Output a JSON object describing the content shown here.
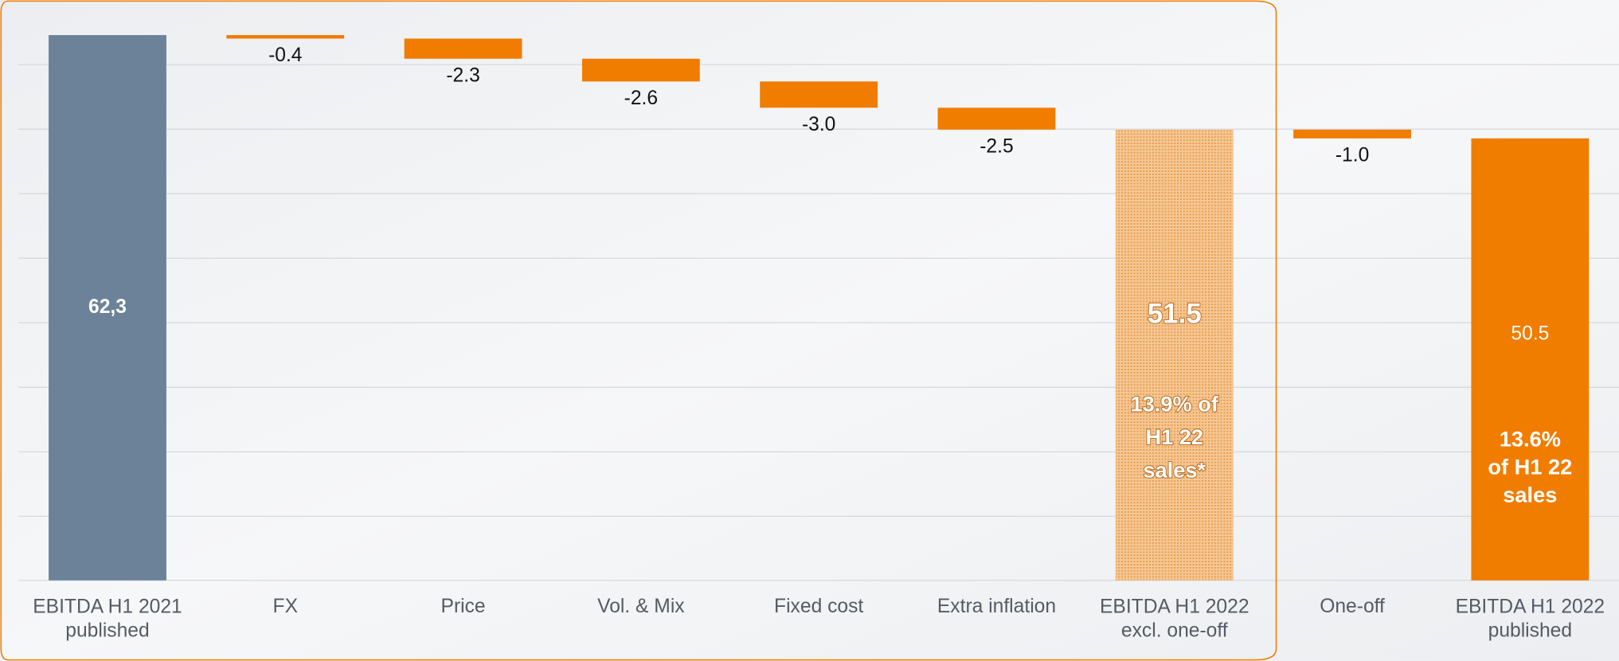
{
  "chart_data": {
    "type": "waterfall",
    "categories": [
      "EBITDA  H1 2021\npublished",
      "FX",
      "Price",
      "Vol. & Mix",
      "Fixed cost",
      "Extra inflation",
      "EBITDA H1 2022\nexcl. one-off",
      "One-off",
      "EBITDA H1 2022\npublished"
    ],
    "values": [
      62.3,
      -0.4,
      -2.3,
      -2.6,
      -3.0,
      -2.5,
      51.5,
      -1.0,
      50.5
    ],
    "value_labels": [
      "62,3",
      "-0.4",
      "-2.3",
      "-2.6",
      "-3.0",
      "-2.5",
      "51.5",
      "-1.0",
      "50.5"
    ],
    "bar_kinds": [
      "total",
      "delta",
      "delta",
      "delta",
      "delta",
      "delta",
      "subtotal",
      "delta",
      "total"
    ],
    "colors": {
      "start": "#6b8299",
      "delta": "#f07c00",
      "subtotal": "#f0b67a",
      "end": "#f07c00"
    },
    "annotations": [
      {
        "category": 6,
        "text": "13.9% of\nH1 22\nsales*"
      },
      {
        "category": 8,
        "text": "13.6%\nof H1 22\nsales"
      }
    ],
    "ylim": [
      0,
      66.3
    ],
    "grid": true
  }
}
